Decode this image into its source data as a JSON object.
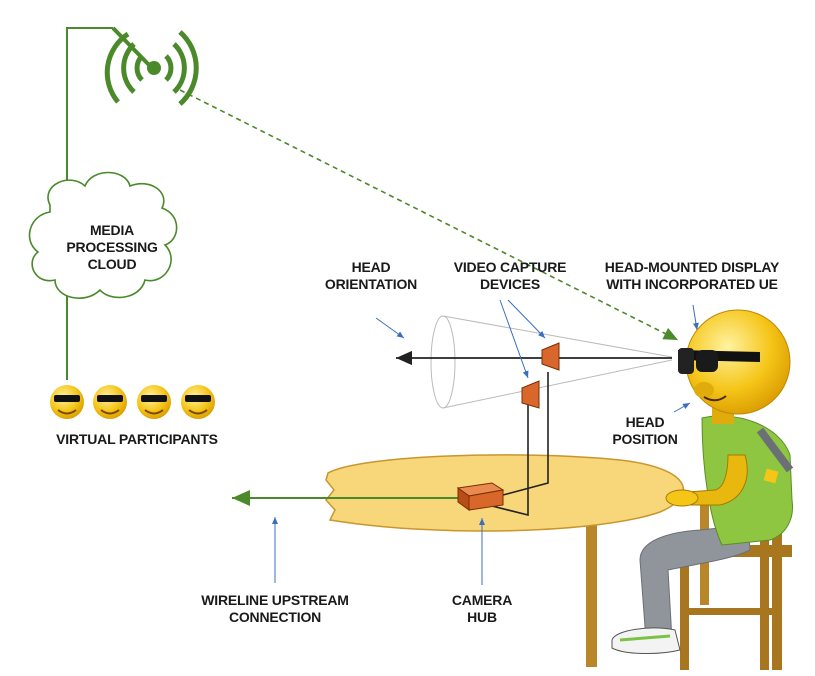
{
  "labels": {
    "cloud": [
      "MEDIA",
      "PROCESSING",
      "CLOUD"
    ],
    "participants": "VIRTUAL PARTICIPANTS",
    "head_orientation": [
      "HEAD",
      "ORIENTATION"
    ],
    "video_capture": [
      "VIDEO CAPTURE",
      "DEVICES"
    ],
    "hmd": [
      "HEAD-MOUNTED DISPLAY",
      "WITH INCORPORATED UE"
    ],
    "head_position": [
      "HEAD",
      "POSITION"
    ],
    "wireline": [
      "WIRELINE UPSTREAM",
      "CONNECTION"
    ],
    "camera_hub": [
      "CAMERA",
      "HUB"
    ]
  },
  "colors": {
    "green": "#4a8a2a",
    "pointer_blue": "#3a6fc0",
    "table": "#f7d77a",
    "table_edge": "#c9962e",
    "camera": "#d9662b",
    "face": "#f5c518",
    "shirt": "#8ec641"
  }
}
